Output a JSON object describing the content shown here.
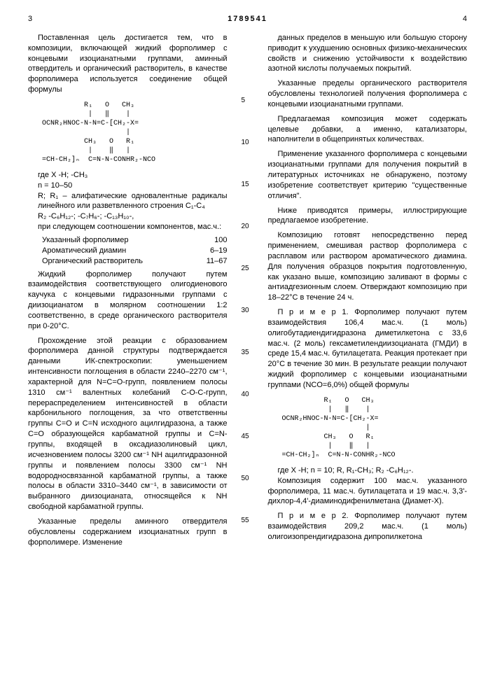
{
  "header": {
    "left_page": "3",
    "patent_number": "1789541",
    "right_page": "4"
  },
  "left_column": {
    "p1": "Поставленная цель достигается тем, что в композиции, включающей жидкий форполимер с концевыми изоцианатными группами, аминный отвердитель и органический растворитель, в качестве форполимера используется соединение общей формулы",
    "formula1": "          R₁   O   CH₃\n           |   ‖    |\nOCNR₂HNOC-N-N=C-[CH₂-X=\n                    |\n          CH₃   O   R₁\n           |    ‖   |\n=CH-CH₂]ₙ  C=N-N-CONHR₂-NCO",
    "def1": "где X -H; -CH₃",
    "def2": "n = 10–50",
    "def3": "R; R₁ – алифатические одновалентные радикалы линейного или разветвленного строения C₁-C₄",
    "def4": "R₂ -C₆H₁₂-; -C₇H₆-; -C₁₃H₁₀-,",
    "def5": "при следующем соотношении компонентов, мас.ч.:",
    "tbl": {
      "r1l": "Указанный форполимер",
      "r1v": "100",
      "r2l": "Ароматический диамин",
      "r2v": "6–19",
      "r3l": "Органический растворитель",
      "r3v": "11–67"
    },
    "p2": "Жидкий форполимер получают путем взаимодействия соответствующего олигодиенового каучука с концевыми гидразонными группами с диизоцианатом в молярном соотношении 1:2 соответственно, в среде органического растворителя при 0-20°C.",
    "p3": "Прохождение этой реакции с образованием форполимера данной структуры подтверждается данными ИК-спектроскопии: уменьшением интенсивности поглощения в области 2240–2270 см⁻¹, характерной для N=C=O-групп, появлением полосы 1310 см⁻¹ валентных колебаний C-O-C-групп, перераспределением интенсивностей в области карбонильного поглощения, за что ответственны группы C=O и C=N исходного ацилгидразона, а также C=O образующейся карбаматной группы и C=N-группы, входящей в оксадиазолиновый цикл, исчезновением полосы 3200 см⁻¹ NH ацилгидразонной группы и появлением полосы 3300 см⁻¹ NH водородносвязанной карбаматной группы, а также полосы в области 3310–3440 см⁻¹, в зависимости от выбранного диизоцианата, относящейся к NH свободной карбаматной группы.",
    "p4": "Указанные пределы аминного отвердителя обусловлены содержанием изоцианатных групп в форполимере. Изменение"
  },
  "line_marks": [
    "5",
    "10",
    "15",
    "20",
    "25",
    "30",
    "35",
    "40",
    "45",
    "50",
    "55"
  ],
  "right_column": {
    "p1": "данных пределов в меньшую или большую сторону приводит к ухудшению основных физико-механических свойств и снижению устойчивости к воздействию азотной кислоты получаемых покрытий.",
    "p2": "Указанные пределы органического растворителя обусловлены технологией получения форполимера с концевыми изоцианатными группами.",
    "p3": "Предлагаемая композиция может содержать целевые добавки, а именно, катализаторы, наполнители в общепринятых количествах.",
    "p4": "Применение указанного форполимера с концевыми изоцианатными группами для получения покрытий в литературных источниках не обнаружено, поэтому изобретение соответствует критерию \"существенные отличия\".",
    "p5": "Ниже приводятся примеры, иллюстрирующие предлагаемое изобретение.",
    "p6": "Композицию готовят непосредственно перед применением, смешивая раствор форполимера с расплавом или раствором ароматического диамина. Для получения образцов покрытия подготовленную, как указано выше, композицию заливают в формы с антиадгезионным слоем. Отверждают композицию при 18–22°C в течение 24 ч.",
    "p7": "П р и м е р  1. Форполимер получают путем взаимодействия 106,4 мас.ч. (1 моль) олигобутадиендигидразона диметилкетона с 33,6 мас.ч. (2 моль) гексаметилендиизоцианата (ГМДИ) в среде 15,4 мас.ч. бутилацетата. Реакция протекает при 20°C в течение 30 мин. В результате реакции получают жидкий форполимер с концевыми изоцианатными группами (NCO=6,0%) общей формулы",
    "formula2": "          R₁   O   CH₃\n           |   ‖    |\nOCNR₂HNOC-N-N=C-[CH₂-X=\n                    |\n          CH₃   O   R₁\n           |    ‖   |\n=CH-CH₂]ₙ  C=N-N-CONHR₂-NCO",
    "def6": "где X -H; n = 10; R, R₁-CH₃; R₂ -C₆H₁₂-.",
    "p8": "Композиция содержит 100 мас.ч. указанного форполимера, 11 мас.ч. бутилацетата и 19 мас.ч. 3,3'-дихлор-4,4'-диаминодифенилметана (Диамет-X).",
    "p9": "П р и м е р  2. Форполимер получают путем взаимодействия 209,2 мас.ч. (1 моль) олигоизопрендигидразона дипропилкетона"
  }
}
